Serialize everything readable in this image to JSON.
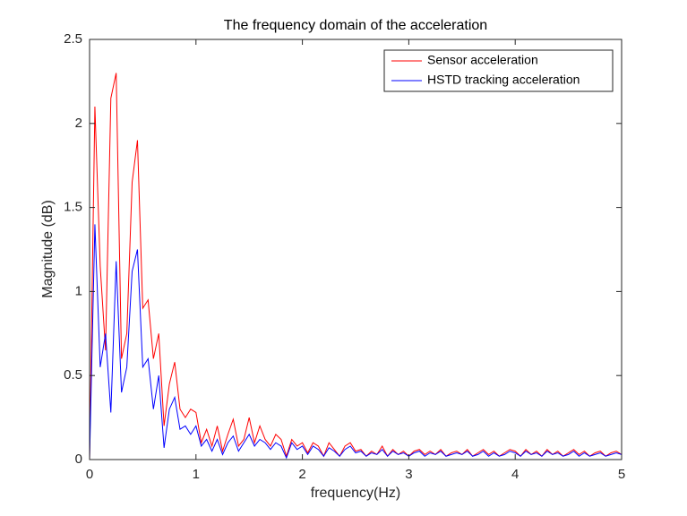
{
  "chart_data": {
    "type": "line",
    "title": "The frequency domain of the acceleration",
    "x_label": "frequency(Hz)",
    "y_label": "Magnitude (dB)",
    "x": [
      0,
      0.05,
      0.1,
      0.15,
      0.2,
      0.25,
      0.3,
      0.35,
      0.4,
      0.45,
      0.5,
      0.55,
      0.6,
      0.65,
      0.7,
      0.75,
      0.8,
      0.85,
      0.9,
      0.95,
      1,
      1.05,
      1.1,
      1.15,
      1.2,
      1.25,
      1.3,
      1.35,
      1.4,
      1.45,
      1.5,
      1.55,
      1.6,
      1.65,
      1.7,
      1.75,
      1.8,
      1.85,
      1.9,
      1.95,
      2,
      2.05,
      2.1,
      2.15,
      2.2,
      2.25,
      2.3,
      2.35,
      2.4,
      2.45,
      2.5,
      2.55,
      2.6,
      2.65,
      2.7,
      2.75,
      2.8,
      2.85,
      2.9,
      2.95,
      3,
      3.05,
      3.1,
      3.15,
      3.2,
      3.25,
      3.3,
      3.35,
      3.4,
      3.45,
      3.5,
      3.55,
      3.6,
      3.65,
      3.7,
      3.75,
      3.8,
      3.85,
      3.9,
      3.95,
      4,
      4.05,
      4.1,
      4.15,
      4.2,
      4.25,
      4.3,
      4.35,
      4.4,
      4.45,
      4.5,
      4.55,
      4.6,
      4.65,
      4.7,
      4.75,
      4.8,
      4.85,
      4.9,
      4.95,
      5
    ],
    "series": [
      {
        "name": "Sensor acceleration",
        "color": "#ff0000",
        "values": [
          0,
          2.1,
          1.15,
          0.65,
          2.15,
          2.3,
          0.6,
          0.75,
          1.65,
          1.9,
          0.9,
          0.95,
          0.6,
          0.75,
          0.2,
          0.45,
          0.58,
          0.3,
          0.25,
          0.3,
          0.28,
          0.1,
          0.18,
          0.08,
          0.2,
          0.05,
          0.15,
          0.24,
          0.08,
          0.12,
          0.25,
          0.1,
          0.2,
          0.12,
          0.08,
          0.15,
          0.12,
          0.02,
          0.12,
          0.08,
          0.1,
          0.04,
          0.1,
          0.08,
          0.02,
          0.1,
          0.06,
          0.02,
          0.08,
          0.1,
          0.05,
          0.06,
          0.02,
          0.05,
          0.03,
          0.08,
          0.02,
          0.06,
          0.03,
          0.05,
          0.02,
          0.05,
          0.06,
          0.03,
          0.05,
          0.03,
          0.06,
          0.02,
          0.04,
          0.05,
          0.03,
          0.06,
          0.02,
          0.04,
          0.06,
          0.03,
          0.05,
          0.02,
          0.04,
          0.06,
          0.05,
          0.02,
          0.06,
          0.03,
          0.05,
          0.02,
          0.06,
          0.03,
          0.05,
          0.02,
          0.04,
          0.06,
          0.03,
          0.05,
          0.02,
          0.04,
          0.05,
          0.02,
          0.04,
          0.05,
          0.03
        ]
      },
      {
        "name": "HSTD tracking acceleration",
        "color": "#0000ff",
        "values": [
          0,
          1.4,
          0.55,
          0.75,
          0.28,
          1.18,
          0.4,
          0.55,
          1.12,
          1.25,
          0.55,
          0.6,
          0.3,
          0.5,
          0.07,
          0.3,
          0.37,
          0.18,
          0.2,
          0.15,
          0.2,
          0.08,
          0.12,
          0.05,
          0.12,
          0.03,
          0.1,
          0.14,
          0.05,
          0.1,
          0.15,
          0.08,
          0.12,
          0.1,
          0.06,
          0.1,
          0.08,
          0.01,
          0.1,
          0.06,
          0.08,
          0.03,
          0.08,
          0.06,
          0.02,
          0.07,
          0.05,
          0.02,
          0.06,
          0.08,
          0.04,
          0.05,
          0.02,
          0.04,
          0.03,
          0.06,
          0.02,
          0.05,
          0.03,
          0.04,
          0.02,
          0.04,
          0.05,
          0.02,
          0.04,
          0.03,
          0.05,
          0.02,
          0.03,
          0.04,
          0.03,
          0.05,
          0.02,
          0.03,
          0.05,
          0.02,
          0.04,
          0.02,
          0.03,
          0.05,
          0.04,
          0.02,
          0.05,
          0.03,
          0.04,
          0.02,
          0.05,
          0.03,
          0.04,
          0.02,
          0.03,
          0.05,
          0.02,
          0.04,
          0.02,
          0.03,
          0.04,
          0.02,
          0.03,
          0.04,
          0.03
        ]
      }
    ],
    "xlim": [
      0,
      5
    ],
    "xticks": [
      0,
      1,
      2,
      3,
      4,
      5
    ],
    "ylim": [
      0,
      2.5
    ],
    "yticks": [
      0,
      0.5,
      1,
      1.5,
      2,
      2.5
    ],
    "legend": "top-right"
  }
}
